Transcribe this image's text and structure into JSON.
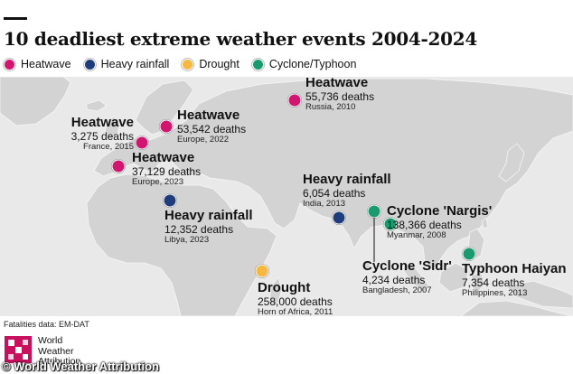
{
  "title": "10 deadliest extreme weather events 2004-2024",
  "legend": [
    {
      "label": "Heatwave",
      "color": "#d0166f"
    },
    {
      "label": "Heavy rainfall",
      "color": "#1f3d7a"
    },
    {
      "label": "Drought",
      "color": "#f5b942"
    },
    {
      "label": "Cyclone/Typhoon",
      "color": "#1a9a6e"
    }
  ],
  "events": {
    "heatwave_russia": {
      "type": "Heatwave",
      "deaths": "55,736 deaths",
      "place": "Russia, 2010"
    },
    "heatwave_europe_2022": {
      "type": "Heatwave",
      "deaths": "53,542 deaths",
      "place": "Europe, 2022"
    },
    "heatwave_france": {
      "type": "Heatwave",
      "deaths": "3,275 deaths",
      "place": "France, 2015"
    },
    "heatwave_europe_2023": {
      "type": "Heatwave",
      "deaths": "37,129 deaths",
      "place": "Europe, 2023"
    },
    "rain_libya": {
      "type": "Heavy rainfall",
      "deaths": "12,352 deaths",
      "place": "Libya, 2023"
    },
    "rain_india": {
      "type": "Heavy rainfall",
      "deaths": "6,054 deaths",
      "place": "India, 2013"
    },
    "drought_horn": {
      "type": "Drought",
      "deaths": "258,000 deaths",
      "place": "Horn of Africa, 2011"
    },
    "cyclone_nargis": {
      "type": "Cyclone 'Nargis'",
      "deaths": "138,366 deaths",
      "place": "Myanmar, 2008"
    },
    "cyclone_sidr": {
      "type": "Cyclone 'Sidr'",
      "deaths": "4,234 deaths",
      "place": "Bangladesh, 2007"
    },
    "typhoon_haiyan": {
      "type": "Typhoon Haiyan",
      "deaths": "7,354 deaths",
      "place": "Philippines, 2013"
    }
  },
  "source": "Fatalities data: EM-DAT",
  "logo": {
    "line1": "World",
    "line2": "Weather",
    "line3": "Attribution"
  },
  "watermark": "© World Weather Attribution"
}
